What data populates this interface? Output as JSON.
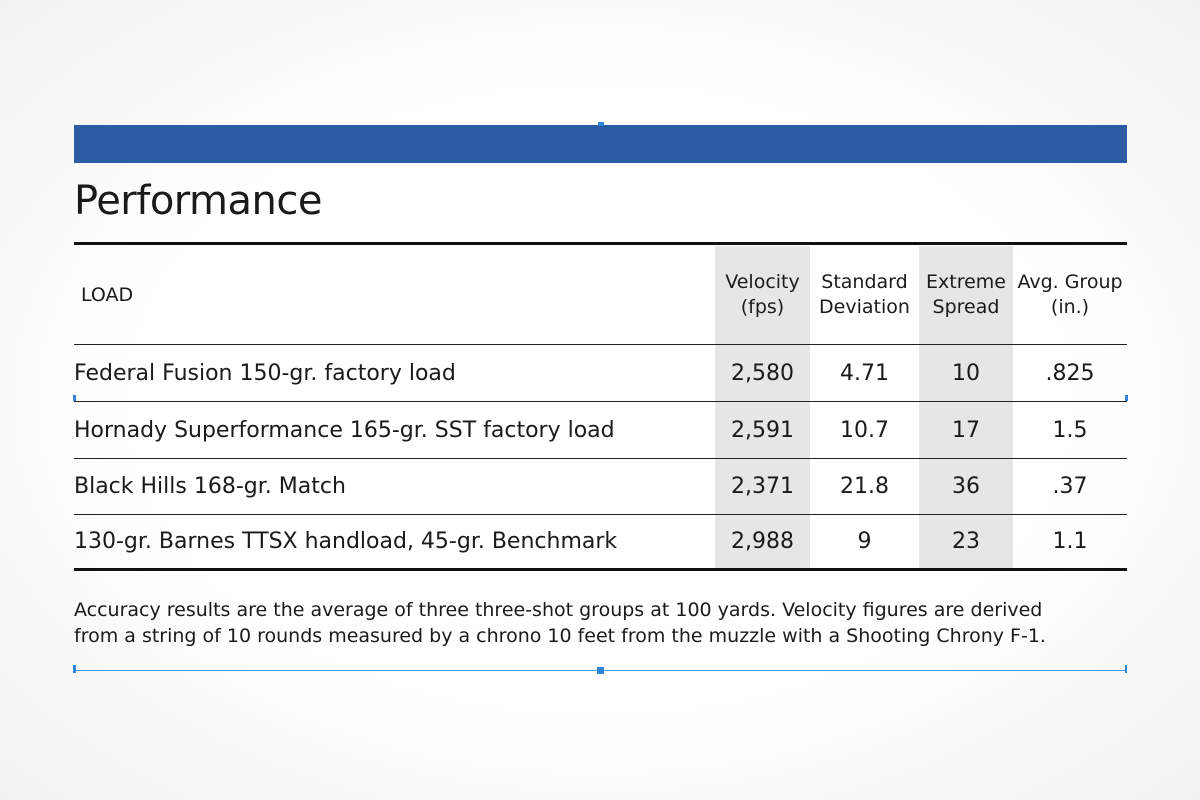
{
  "title": "Performance",
  "colors": {
    "accent_bar": "#2d5ca6",
    "column_shade": "#e6e6e6"
  },
  "table": {
    "headers": {
      "load": "LOAD",
      "velocity": [
        "Velocity",
        "(fps)"
      ],
      "sd": [
        "Standard",
        "Deviation"
      ],
      "es": [
        "Extreme",
        "Spread"
      ],
      "group": [
        "Avg. Group",
        "(in.)"
      ]
    },
    "rows": [
      {
        "load": "Federal Fusion 150-gr. factory load",
        "velocity": "2,580",
        "sd": "4.71",
        "es": "10",
        "group": ".825"
      },
      {
        "load": "Hornady Superformance 165-gr. SST factory load",
        "velocity": "2,591",
        "sd": "10.7",
        "es": "17",
        "group": "1.5"
      },
      {
        "load": "Black Hills 168-gr. Match",
        "velocity": "2,371",
        "sd": "21.8",
        "es": "36",
        "group": ".37"
      },
      {
        "load": "130-gr. Barnes TTSX handload, 45-gr. Benchmark",
        "velocity": "2,988",
        "sd": "9",
        "es": "23",
        "group": "1.1"
      }
    ]
  },
  "note": "Accuracy results are the average of three three-shot groups at 100 yards. Velocity figures are derived from a string of 10 rounds measured by a chrono 10 feet from the muzzle with a Shooting Chrony F-1."
}
